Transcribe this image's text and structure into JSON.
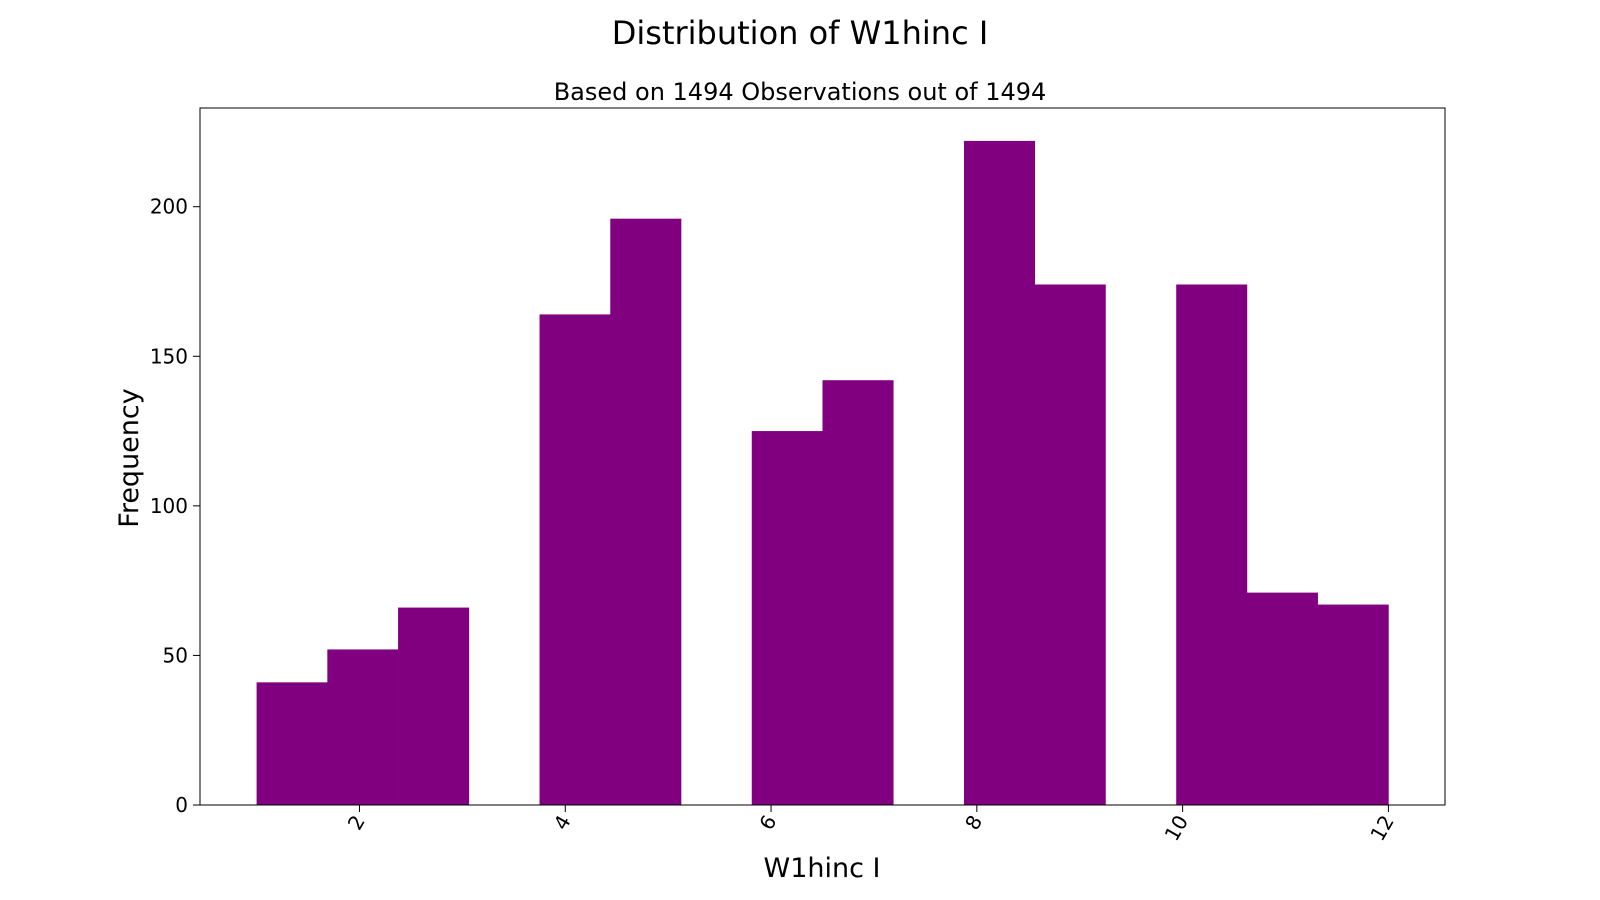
{
  "chart_data": {
    "type": "bar",
    "title": "Distribution of W1hinc I",
    "subtitle": "Based on 1494 Observations out of 1494",
    "xlabel": "W1hinc I",
    "ylabel": "Frequency",
    "bar_color": "#800080",
    "xlim": [
      0.45,
      12.55
    ],
    "ylim": [
      0,
      233
    ],
    "xticks": [
      2,
      4,
      6,
      8,
      10,
      12
    ],
    "yticks": [
      0,
      50,
      100,
      150,
      200
    ],
    "xtick_rotation": -60,
    "grid": false,
    "legend": "none",
    "bins": [
      {
        "x0": 1.0,
        "x1": 1.6875,
        "value": 41
      },
      {
        "x0": 1.6875,
        "x1": 2.375,
        "value": 52
      },
      {
        "x0": 2.375,
        "x1": 3.0625,
        "value": 66
      },
      {
        "x0": 3.0625,
        "x1": 3.75,
        "value": 0
      },
      {
        "x0": 3.75,
        "x1": 4.4375,
        "value": 164
      },
      {
        "x0": 4.4375,
        "x1": 5.125,
        "value": 196
      },
      {
        "x0": 5.125,
        "x1": 5.8125,
        "value": 0
      },
      {
        "x0": 5.8125,
        "x1": 6.5,
        "value": 125
      },
      {
        "x0": 6.5,
        "x1": 7.1875,
        "value": 142
      },
      {
        "x0": 7.1875,
        "x1": 7.875,
        "value": 0
      },
      {
        "x0": 7.875,
        "x1": 8.5625,
        "value": 222
      },
      {
        "x0": 8.5625,
        "x1": 9.25,
        "value": 174
      },
      {
        "x0": 9.25,
        "x1": 9.9375,
        "value": 0
      },
      {
        "x0": 9.9375,
        "x1": 10.625,
        "value": 174
      },
      {
        "x0": 10.625,
        "x1": 11.3125,
        "value": 71
      },
      {
        "x0": 11.3125,
        "x1": 12.0,
        "value": 67
      }
    ]
  }
}
